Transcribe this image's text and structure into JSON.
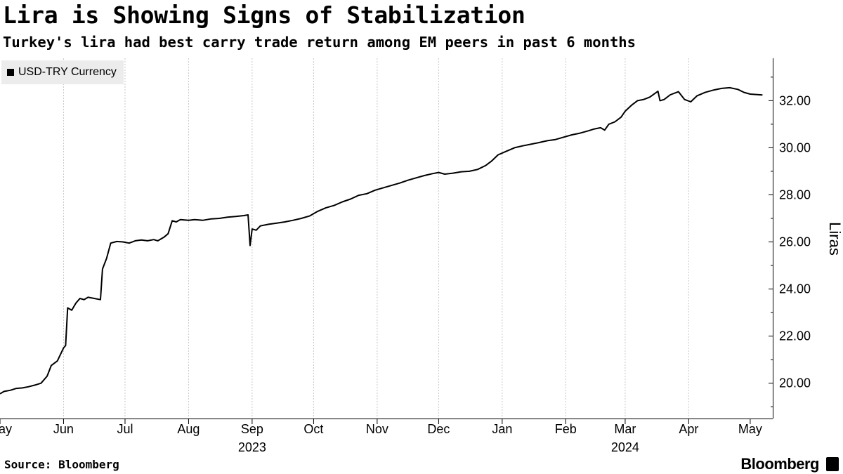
{
  "header": {
    "title": "Lira is Showing Signs of Stabilization",
    "subtitle": "Turkey's lira had best carry trade return among EM peers in past 6 months"
  },
  "footer": {
    "source": "Source: Bloomberg",
    "brand": "Bloomberg"
  },
  "colors": {
    "line": "#000000",
    "grid": "#c8c8c8",
    "legend_bg": "#ececec"
  },
  "chart_data": {
    "type": "line",
    "title": "Lira is Showing Signs of Stabilization",
    "subtitle": "Turkey's lira had best carry trade return among EM peers in past 6 months",
    "ylabel": "Liras",
    "xlabel": "",
    "y_axis_side": "right",
    "ylim": [
      18.5,
      33.8
    ],
    "xlim": [
      "2023-05-01",
      "2024-05-12"
    ],
    "y_ticks": [
      20,
      22,
      24,
      26,
      28,
      30,
      32
    ],
    "y_tick_labels": [
      "20.00",
      "22.00",
      "24.00",
      "26.00",
      "28.00",
      "30.00",
      "32.00"
    ],
    "x_ticks": [
      {
        "date": "2023-05-01",
        "label": "May"
      },
      {
        "date": "2023-06-01",
        "label": "Jun"
      },
      {
        "date": "2023-07-01",
        "label": "Jul"
      },
      {
        "date": "2023-08-01",
        "label": "Aug"
      },
      {
        "date": "2023-09-01",
        "label": "Sep"
      },
      {
        "date": "2023-10-01",
        "label": "Oct"
      },
      {
        "date": "2023-11-01",
        "label": "Nov"
      },
      {
        "date": "2023-12-01",
        "label": "Dec"
      },
      {
        "date": "2024-01-01",
        "label": "Jan"
      },
      {
        "date": "2024-02-01",
        "label": "Feb"
      },
      {
        "date": "2024-03-01",
        "label": "Mar"
      },
      {
        "date": "2024-04-01",
        "label": "Apr"
      },
      {
        "date": "2024-05-01",
        "label": "May"
      }
    ],
    "year_labels": [
      {
        "date": "2023-09-01",
        "label": "2023"
      },
      {
        "date": "2024-03-01",
        "label": "2024"
      }
    ],
    "grid": {
      "vertical": true,
      "horizontal": false
    },
    "legend": {
      "position": "top-left",
      "entries": [
        "USD-TRY Currency"
      ]
    },
    "series": [
      {
        "name": "USD-TRY Currency",
        "points": [
          [
            "2023-05-01",
            19.55
          ],
          [
            "2023-05-03",
            19.65
          ],
          [
            "2023-05-06",
            19.7
          ],
          [
            "2023-05-09",
            19.78
          ],
          [
            "2023-05-12",
            19.8
          ],
          [
            "2023-05-15",
            19.85
          ],
          [
            "2023-05-18",
            19.92
          ],
          [
            "2023-05-21",
            20.0
          ],
          [
            "2023-05-24",
            20.3
          ],
          [
            "2023-05-26",
            20.75
          ],
          [
            "2023-05-29",
            20.95
          ],
          [
            "2023-06-01",
            21.5
          ],
          [
            "2023-06-02",
            21.6
          ],
          [
            "2023-06-03",
            23.2
          ],
          [
            "2023-06-05",
            23.1
          ],
          [
            "2023-06-07",
            23.4
          ],
          [
            "2023-06-09",
            23.6
          ],
          [
            "2023-06-11",
            23.55
          ],
          [
            "2023-06-13",
            23.65
          ],
          [
            "2023-06-16",
            23.6
          ],
          [
            "2023-06-19",
            23.55
          ],
          [
            "2023-06-20",
            24.85
          ],
          [
            "2023-06-22",
            25.3
          ],
          [
            "2023-06-24",
            25.95
          ],
          [
            "2023-06-27",
            26.02
          ],
          [
            "2023-06-30",
            26.0
          ],
          [
            "2023-07-03",
            25.95
          ],
          [
            "2023-07-06",
            26.05
          ],
          [
            "2023-07-09",
            26.08
          ],
          [
            "2023-07-12",
            26.05
          ],
          [
            "2023-07-15",
            26.1
          ],
          [
            "2023-07-17",
            26.05
          ],
          [
            "2023-07-20",
            26.2
          ],
          [
            "2023-07-22",
            26.35
          ],
          [
            "2023-07-24",
            26.9
          ],
          [
            "2023-07-26",
            26.85
          ],
          [
            "2023-07-28",
            26.95
          ],
          [
            "2023-08-01",
            26.92
          ],
          [
            "2023-08-04",
            26.95
          ],
          [
            "2023-08-08",
            26.92
          ],
          [
            "2023-08-12",
            26.98
          ],
          [
            "2023-08-16",
            27.0
          ],
          [
            "2023-08-20",
            27.05
          ],
          [
            "2023-08-24",
            27.08
          ],
          [
            "2023-08-28",
            27.12
          ],
          [
            "2023-08-30",
            27.15
          ],
          [
            "2023-08-31",
            25.85
          ],
          [
            "2023-09-01",
            26.55
          ],
          [
            "2023-09-03",
            26.5
          ],
          [
            "2023-09-05",
            26.68
          ],
          [
            "2023-09-09",
            26.75
          ],
          [
            "2023-09-13",
            26.8
          ],
          [
            "2023-09-17",
            26.85
          ],
          [
            "2023-09-21",
            26.92
          ],
          [
            "2023-09-25",
            27.0
          ],
          [
            "2023-09-29",
            27.1
          ],
          [
            "2023-10-03",
            27.3
          ],
          [
            "2023-10-07",
            27.45
          ],
          [
            "2023-10-11",
            27.55
          ],
          [
            "2023-10-15",
            27.7
          ],
          [
            "2023-10-19",
            27.82
          ],
          [
            "2023-10-23",
            27.98
          ],
          [
            "2023-10-27",
            28.05
          ],
          [
            "2023-10-31",
            28.2
          ],
          [
            "2023-11-04",
            28.3
          ],
          [
            "2023-11-08",
            28.4
          ],
          [
            "2023-11-12",
            28.5
          ],
          [
            "2023-11-16",
            28.62
          ],
          [
            "2023-11-20",
            28.72
          ],
          [
            "2023-11-24",
            28.82
          ],
          [
            "2023-11-28",
            28.9
          ],
          [
            "2023-12-01",
            28.95
          ],
          [
            "2023-12-04",
            28.88
          ],
          [
            "2023-12-08",
            28.92
          ],
          [
            "2023-12-12",
            28.98
          ],
          [
            "2023-12-16",
            29.0
          ],
          [
            "2023-12-20",
            29.08
          ],
          [
            "2023-12-24",
            29.25
          ],
          [
            "2023-12-27",
            29.45
          ],
          [
            "2023-12-30",
            29.7
          ],
          [
            "2024-01-03",
            29.85
          ],
          [
            "2024-01-07",
            30.0
          ],
          [
            "2024-01-11",
            30.08
          ],
          [
            "2024-01-15",
            30.15
          ],
          [
            "2024-01-19",
            30.22
          ],
          [
            "2024-01-23",
            30.3
          ],
          [
            "2024-01-27",
            30.35
          ],
          [
            "2024-01-31",
            30.45
          ],
          [
            "2024-02-04",
            30.55
          ],
          [
            "2024-02-08",
            30.62
          ],
          [
            "2024-02-12",
            30.72
          ],
          [
            "2024-02-15",
            30.8
          ],
          [
            "2024-02-18",
            30.85
          ],
          [
            "2024-02-20",
            30.75
          ],
          [
            "2024-02-22",
            31.0
          ],
          [
            "2024-02-25",
            31.1
          ],
          [
            "2024-02-28",
            31.3
          ],
          [
            "2024-03-01",
            31.55
          ],
          [
            "2024-03-04",
            31.8
          ],
          [
            "2024-03-07",
            32.0
          ],
          [
            "2024-03-10",
            32.05
          ],
          [
            "2024-03-13",
            32.15
          ],
          [
            "2024-03-17",
            32.4
          ],
          [
            "2024-03-18",
            32.0
          ],
          [
            "2024-03-20",
            32.05
          ],
          [
            "2024-03-23",
            32.25
          ],
          [
            "2024-03-27",
            32.38
          ],
          [
            "2024-03-30",
            32.05
          ],
          [
            "2024-04-02",
            31.95
          ],
          [
            "2024-04-05",
            32.2
          ],
          [
            "2024-04-09",
            32.35
          ],
          [
            "2024-04-13",
            32.45
          ],
          [
            "2024-04-17",
            32.52
          ],
          [
            "2024-04-21",
            32.55
          ],
          [
            "2024-04-25",
            32.48
          ],
          [
            "2024-04-28",
            32.35
          ],
          [
            "2024-05-01",
            32.28
          ],
          [
            "2024-05-04",
            32.26
          ],
          [
            "2024-05-07",
            32.24
          ]
        ]
      }
    ]
  }
}
